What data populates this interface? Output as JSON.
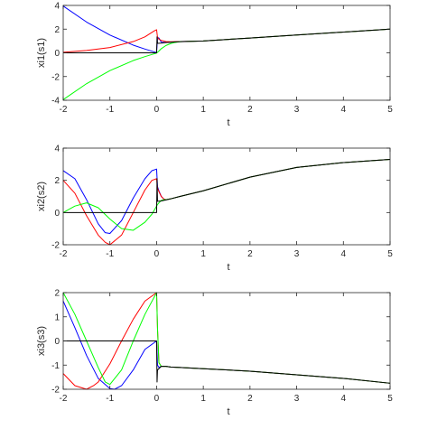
{
  "chart_data": [
    {
      "type": "line",
      "xlabel": "t",
      "ylabel": "xi1(s1)",
      "xlim": [
        -2,
        5
      ],
      "ylim": [
        -4,
        4
      ],
      "xticks": [
        "-2",
        "-1",
        "0",
        "1",
        "2",
        "3",
        "4",
        "5"
      ],
      "yticks": [
        "-4",
        "-2",
        "0",
        "2",
        "4"
      ],
      "grid": false,
      "series": [
        {
          "color": "#0000ff",
          "x": [
            -2,
            -1.5,
            -1,
            -0.5,
            -0.25,
            -0.05,
            0,
            0.02,
            0.05,
            0.1,
            0.2,
            0.3,
            0.4,
            0.5,
            0.7,
            1,
            2,
            3,
            4,
            5
          ],
          "y": [
            3.95,
            2.6,
            1.5,
            0.65,
            0.32,
            0.08,
            0.02,
            1.3,
            1.25,
            0.9,
            0.88,
            0.9,
            0.93,
            0.95,
            0.97,
            1.0,
            1.25,
            1.5,
            1.75,
            2.0
          ]
        },
        {
          "color": "#ff0000",
          "x": [
            -2,
            -1.5,
            -1,
            -0.5,
            -0.25,
            -0.05,
            0,
            0.02,
            0.05,
            0.1,
            0.2,
            0.3,
            0.4,
            0.5,
            0.7,
            1,
            2,
            3,
            4,
            5
          ],
          "y": [
            0.05,
            0.2,
            0.45,
            0.95,
            1.35,
            1.85,
            1.95,
            1.3,
            1.15,
            1.05,
            0.95,
            0.93,
            0.94,
            0.95,
            0.97,
            1.0,
            1.25,
            1.5,
            1.75,
            2.0
          ]
        },
        {
          "color": "#00ff00",
          "x": [
            -2,
            -1.5,
            -1,
            -0.5,
            -0.25,
            -0.05,
            0,
            0.02,
            0.05,
            0.1,
            0.2,
            0.3,
            0.4,
            0.5,
            0.7,
            1,
            2,
            3,
            4,
            5
          ],
          "y": [
            -3.95,
            -2.6,
            -1.5,
            -0.65,
            -0.32,
            -0.08,
            -0.02,
            0.05,
            0.15,
            0.35,
            0.62,
            0.78,
            0.88,
            0.94,
            0.97,
            1.0,
            1.25,
            1.5,
            1.75,
            2.0
          ]
        },
        {
          "color": "#000000",
          "x": [
            -2,
            -1,
            0,
            0.01,
            0.02,
            0.1,
            0.2,
            0.4,
            0.6,
            1,
            2,
            3,
            4,
            5
          ],
          "y": [
            0,
            0,
            0,
            1.35,
            0.8,
            0.82,
            0.87,
            0.92,
            0.95,
            1.0,
            1.25,
            1.5,
            1.75,
            2.0
          ]
        }
      ]
    },
    {
      "type": "line",
      "xlabel": "t",
      "ylabel": "xi2(s2)",
      "xlim": [
        -2,
        5
      ],
      "ylim": [
        -2,
        4
      ],
      "xticks": [
        "-2",
        "-1",
        "0",
        "1",
        "2",
        "3",
        "4",
        "5"
      ],
      "yticks": [
        "-2",
        "0",
        "2",
        "4"
      ],
      "grid": false,
      "series": [
        {
          "color": "#0000ff",
          "x": [
            -2,
            -1.75,
            -1.5,
            -1.25,
            -1.1,
            -1,
            -0.75,
            -0.5,
            -0.25,
            -0.1,
            0,
            0.02,
            0.05,
            0.1,
            0.15,
            0.2,
            0.3,
            0.5,
            1,
            2,
            3,
            4,
            5
          ],
          "y": [
            2.6,
            2.1,
            0.8,
            -0.7,
            -1.25,
            -1.3,
            -0.5,
            0.9,
            2.1,
            2.6,
            2.7,
            1.6,
            1.35,
            1.0,
            0.85,
            0.8,
            0.85,
            1.0,
            1.35,
            2.2,
            2.8,
            3.1,
            3.3
          ]
        },
        {
          "color": "#ff0000",
          "x": [
            -2,
            -1.75,
            -1.5,
            -1.25,
            -1.1,
            -1,
            -0.75,
            -0.5,
            -0.25,
            -0.1,
            0,
            0.02,
            0.05,
            0.1,
            0.15,
            0.2,
            0.3,
            0.5,
            1,
            2,
            3,
            4,
            5
          ],
          "y": [
            2.0,
            1.2,
            -0.2,
            -1.4,
            -1.85,
            -2.0,
            -1.4,
            0.0,
            1.4,
            2.0,
            2.1,
            1.5,
            1.3,
            1.0,
            0.85,
            0.8,
            0.85,
            1.0,
            1.35,
            2.2,
            2.8,
            3.1,
            3.3
          ]
        },
        {
          "color": "#00ff00",
          "x": [
            -2,
            -1.75,
            -1.5,
            -1.25,
            -1,
            -0.75,
            -0.5,
            -0.25,
            -0.1,
            0,
            0.02,
            0.05,
            0.1,
            0.15,
            0.2,
            0.3,
            0.5,
            1,
            2,
            3,
            4,
            5
          ],
          "y": [
            0.0,
            0.4,
            0.6,
            0.3,
            -0.4,
            -1.0,
            -1.1,
            -0.6,
            -0.1,
            0.4,
            0.5,
            0.6,
            0.75,
            0.8,
            0.8,
            0.85,
            1.0,
            1.35,
            2.2,
            2.8,
            3.1,
            3.3
          ]
        },
        {
          "color": "#000000",
          "x": [
            -2,
            -1,
            0,
            0.01,
            0.02,
            0.1,
            0.2,
            0.3,
            0.5,
            1,
            2,
            3,
            4,
            5
          ],
          "y": [
            0,
            0,
            0,
            2.1,
            0.7,
            0.72,
            0.78,
            0.85,
            1.0,
            1.35,
            2.2,
            2.8,
            3.1,
            3.3
          ]
        }
      ]
    },
    {
      "type": "line",
      "xlabel": "t",
      "ylabel": "xi3(s3)",
      "xlim": [
        -2,
        5
      ],
      "ylim": [
        -2,
        2
      ],
      "xticks": [
        "-2",
        "-1",
        "0",
        "1",
        "2",
        "3",
        "4",
        "5"
      ],
      "yticks": [
        "-2",
        "-1",
        "0",
        "1",
        "2"
      ],
      "grid": false,
      "series": [
        {
          "color": "#0000ff",
          "x": [
            -2,
            -1.75,
            -1.5,
            -1.25,
            -1,
            -0.9,
            -0.75,
            -0.5,
            -0.25,
            0,
            0.02,
            0.05,
            0.1,
            0.2,
            0.3,
            0.5,
            1,
            2,
            3,
            4,
            5
          ],
          "y": [
            1.65,
            0.55,
            -0.6,
            -1.55,
            -1.97,
            -2.0,
            -1.85,
            -1.2,
            -0.35,
            0.0,
            -1.0,
            -1.1,
            -1.05,
            -1.05,
            -1.08,
            -1.1,
            -1.15,
            -1.25,
            -1.4,
            -1.55,
            -1.75
          ]
        },
        {
          "color": "#ff0000",
          "x": [
            -2,
            -1.75,
            -1.5,
            -1.35,
            -1.25,
            -1,
            -0.75,
            -0.5,
            -0.25,
            0,
            0.02,
            0.05,
            0.1,
            0.2,
            0.3,
            0.5,
            1,
            2,
            3,
            4,
            5
          ],
          "y": [
            -1.35,
            -1.85,
            -2.0,
            -1.85,
            -1.7,
            -0.95,
            0.0,
            0.9,
            1.65,
            2.0,
            0.5,
            -0.9,
            -1.05,
            -1.05,
            -1.08,
            -1.1,
            -1.15,
            -1.25,
            -1.4,
            -1.55,
            -1.75
          ]
        },
        {
          "color": "#00ff00",
          "x": [
            -2,
            -1.75,
            -1.5,
            -1.25,
            -1.1,
            -1,
            -0.75,
            -0.5,
            -0.25,
            0,
            0.02,
            0.05,
            0.1,
            0.2,
            0.3,
            0.5,
            1,
            2,
            3,
            4,
            5
          ],
          "y": [
            2.0,
            1.1,
            0.0,
            -1.1,
            -1.7,
            -1.8,
            -1.2,
            0.0,
            1.1,
            2.0,
            0.5,
            -0.9,
            -1.05,
            -1.05,
            -1.08,
            -1.1,
            -1.15,
            -1.25,
            -1.4,
            -1.55,
            -1.75
          ]
        },
        {
          "color": "#000000",
          "x": [
            -2,
            -1,
            0,
            0.01,
            0.02,
            0.1,
            0.2,
            0.3,
            0.5,
            1,
            2,
            3,
            4,
            5
          ],
          "y": [
            0,
            0,
            0,
            -1.7,
            -1.2,
            -1.05,
            -1.05,
            -1.08,
            -1.1,
            -1.15,
            -1.25,
            -1.4,
            -1.55,
            -1.75
          ]
        }
      ]
    }
  ]
}
